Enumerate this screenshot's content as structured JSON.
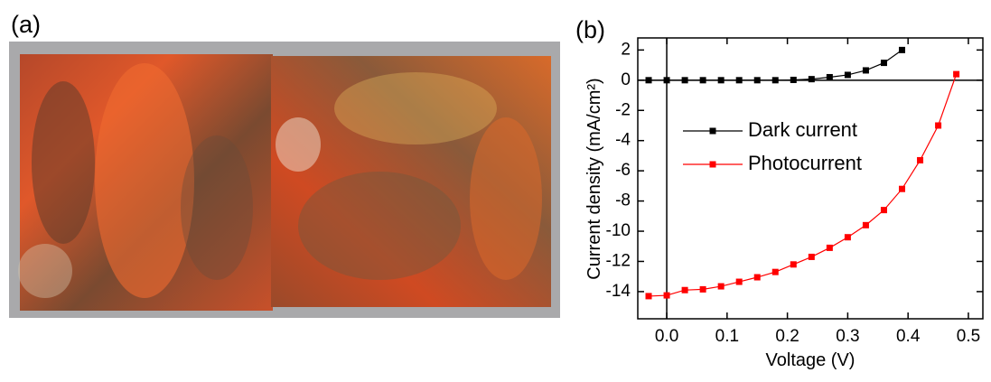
{
  "panel_a": {
    "label": "(a)"
  },
  "chart_data": {
    "type": "line",
    "panel_label": "(b)",
    "x_label": "Voltage (V)",
    "y_label": "Current density (mA/cm²)",
    "x": [
      -0.03,
      0,
      0.03,
      0.06,
      0.09,
      0.12,
      0.15,
      0.18,
      0.21,
      0.24,
      0.27,
      0.3,
      0.33,
      0.36,
      0.39,
      0.42,
      0.45,
      0.48
    ],
    "series": [
      {
        "name": "Dark current",
        "color": "#000000",
        "values": [
          0,
          0,
          0,
          0,
          0,
          0,
          0,
          0,
          0.02,
          0.07,
          0.2,
          0.35,
          0.65,
          1.15,
          2.0,
          null,
          null,
          null
        ]
      },
      {
        "name": "Photocurrent",
        "color": "#ff0000",
        "values": [
          -14.3,
          -14.25,
          -13.9,
          -13.85,
          -13.65,
          -13.35,
          -13.05,
          -12.7,
          -12.2,
          -11.7,
          -11.1,
          -10.4,
          -9.6,
          -8.6,
          -7.2,
          -5.3,
          -3.0,
          0.4
        ]
      }
    ],
    "xlim": [
      -0.048,
      0.524
    ],
    "xticks": [
      {
        "value": 0,
        "label": "0.0"
      },
      0.1,
      0.2,
      0.3,
      0.4,
      0.5
    ],
    "ylim": [
      -15.8,
      2.8
    ],
    "yticks": [
      2,
      0,
      -2,
      -4,
      -6,
      -8,
      -10,
      -12,
      -14
    ],
    "zero_lines": true,
    "legend": "upper left"
  }
}
